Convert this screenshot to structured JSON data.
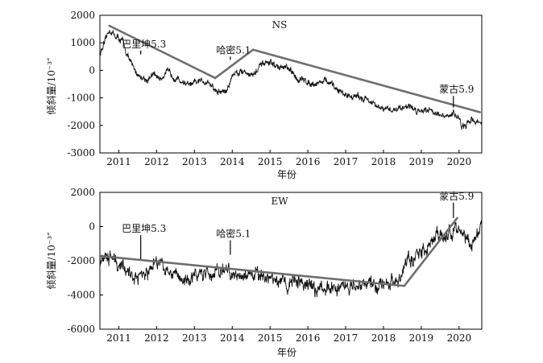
{
  "chart_data": [
    {
      "type": "line",
      "series_name": "NS",
      "xlabel": "年份",
      "ylabel": "倾斜量/10⁻³″",
      "xlim": [
        2010.5,
        2020.6
      ],
      "ylim": [
        -3000,
        2000
      ],
      "x_tick_labels": [
        "2011",
        "2012",
        "2013",
        "2014",
        "2015",
        "2016",
        "2017",
        "2018",
        "2019",
        "2020"
      ],
      "x_tick_values": [
        2011,
        2012,
        2013,
        2014,
        2015,
        2016,
        2017,
        2018,
        2019,
        2020
      ],
      "y_tick_labels": [
        "2000",
        "1000",
        "0",
        "-1000",
        "-2000",
        "-3000"
      ],
      "y_tick_values": [
        2000,
        1000,
        0,
        -1000,
        -2000,
        -3000
      ],
      "signal_nodes": [
        [
          2010.5,
          600
        ],
        [
          2010.62,
          950
        ],
        [
          2010.75,
          1480
        ],
        [
          2010.9,
          1250
        ],
        [
          2011.1,
          1050
        ],
        [
          2011.3,
          300
        ],
        [
          2011.5,
          -150
        ],
        [
          2011.75,
          -350
        ],
        [
          2011.95,
          -150
        ],
        [
          2012.1,
          -300
        ],
        [
          2012.25,
          -50
        ],
        [
          2012.45,
          -200
        ],
        [
          2012.65,
          -400
        ],
        [
          2012.9,
          -550
        ],
        [
          2013.1,
          -420
        ],
        [
          2013.35,
          -380
        ],
        [
          2013.6,
          -800
        ],
        [
          2013.85,
          -750
        ],
        [
          2013.93,
          -520
        ],
        [
          2014.0,
          -150
        ],
        [
          2014.12,
          -60
        ],
        [
          2014.3,
          -20
        ],
        [
          2014.55,
          -180
        ],
        [
          2014.8,
          220
        ],
        [
          2015.0,
          280
        ],
        [
          2015.2,
          120
        ],
        [
          2015.45,
          80
        ],
        [
          2015.7,
          -280
        ],
        [
          2016.0,
          -420
        ],
        [
          2016.2,
          -480
        ],
        [
          2016.45,
          -360
        ],
        [
          2016.7,
          -620
        ],
        [
          2016.95,
          -860
        ],
        [
          2017.25,
          -960
        ],
        [
          2017.55,
          -1020
        ],
        [
          2017.8,
          -1320
        ],
        [
          2018.05,
          -1450
        ],
        [
          2018.35,
          -1400
        ],
        [
          2018.65,
          -1280
        ],
        [
          2018.9,
          -1480
        ],
        [
          2019.1,
          -1380
        ],
        [
          2019.35,
          -1500
        ],
        [
          2019.6,
          -1730
        ],
        [
          2019.85,
          -1580
        ],
        [
          2019.98,
          -1660
        ],
        [
          2020.08,
          -2070
        ],
        [
          2020.2,
          -2050
        ],
        [
          2020.32,
          -1700
        ],
        [
          2020.45,
          -1900
        ],
        [
          2020.6,
          -1850
        ]
      ],
      "noise_amplitude": 150,
      "trend_lines": [
        [
          [
            2010.75,
            1620
          ],
          [
            2013.55,
            -280
          ]
        ],
        [
          [
            2013.55,
            -280
          ],
          [
            2014.55,
            750
          ]
        ],
        [
          [
            2014.55,
            750
          ],
          [
            2020.55,
            -1520
          ]
        ]
      ],
      "annotations": [
        {
          "label": "巴里坤5.3",
          "x": 2011.58,
          "arrow_from": 720,
          "arrow_to": 580
        },
        {
          "label": "哈密5.1",
          "x": 2013.95,
          "arrow_from": 500,
          "arrow_to": 380
        },
        {
          "label": "蒙古5.9",
          "x": 2019.85,
          "arrow_from": -930,
          "arrow_to": -1350
        }
      ]
    },
    {
      "type": "line",
      "series_name": "EW",
      "xlabel": "年份",
      "ylabel": "倾斜量/10⁻³″",
      "xlim": [
        2010.5,
        2020.6
      ],
      "ylim": [
        -6000,
        2000
      ],
      "x_tick_labels": [
        "2011",
        "2012",
        "2013",
        "2014",
        "2015",
        "2016",
        "2017",
        "2018",
        "2019",
        "2020"
      ],
      "x_tick_values": [
        2011,
        2012,
        2013,
        2014,
        2015,
        2016,
        2017,
        2018,
        2019,
        2020
      ],
      "y_tick_labels": [
        "2000",
        "0",
        "-2000",
        "-4000",
        "-6000"
      ],
      "y_tick_values": [
        2000,
        0,
        -2000,
        -4000,
        -6000
      ],
      "signal_nodes": [
        [
          2010.5,
          -1900
        ],
        [
          2010.8,
          -1800
        ],
        [
          2011.1,
          -2300
        ],
        [
          2011.35,
          -3000
        ],
        [
          2011.6,
          -2700
        ],
        [
          2011.85,
          -2400
        ],
        [
          2012.1,
          -2000
        ],
        [
          2012.4,
          -2700
        ],
        [
          2012.7,
          -3100
        ],
        [
          2013.0,
          -2900
        ],
        [
          2013.3,
          -2800
        ],
        [
          2013.6,
          -2700
        ],
        [
          2013.9,
          -2600
        ],
        [
          2014.2,
          -2900
        ],
        [
          2014.5,
          -2700
        ],
        [
          2014.8,
          -3100
        ],
        [
          2015.1,
          -3000
        ],
        [
          2015.4,
          -3300
        ],
        [
          2015.7,
          -3200
        ],
        [
          2016.0,
          -3500
        ],
        [
          2016.3,
          -3700
        ],
        [
          2016.6,
          -3600
        ],
        [
          2016.9,
          -3400
        ],
        [
          2017.2,
          -3500
        ],
        [
          2017.5,
          -3300
        ],
        [
          2017.8,
          -3500
        ],
        [
          2018.1,
          -3200
        ],
        [
          2018.35,
          -3300
        ],
        [
          2018.6,
          -2200
        ],
        [
          2018.85,
          -1700
        ],
        [
          2019.1,
          -1300
        ],
        [
          2019.4,
          -400
        ],
        [
          2019.6,
          -700
        ],
        [
          2019.85,
          -200
        ],
        [
          2020.05,
          -200
        ],
        [
          2020.3,
          -900
        ],
        [
          2020.6,
          0
        ]
      ],
      "noise_amplitude": 520,
      "trend_lines": [
        [
          [
            2010.5,
            -1720
          ],
          [
            2018.55,
            -3470
          ]
        ],
        [
          [
            2018.55,
            -3470
          ],
          [
            2019.95,
            500
          ]
        ]
      ],
      "annotations": [
        {
          "label": "巴里坤5.3",
          "x": 2011.58,
          "arrow_from": -500,
          "arrow_to": -1900
        },
        {
          "label": "哈密5.1",
          "x": 2013.95,
          "arrow_from": -800,
          "arrow_to": -1650
        },
        {
          "label": "蒙古5.9",
          "x": 2019.85,
          "arrow_from": 1400,
          "arrow_to": 500
        }
      ]
    }
  ]
}
